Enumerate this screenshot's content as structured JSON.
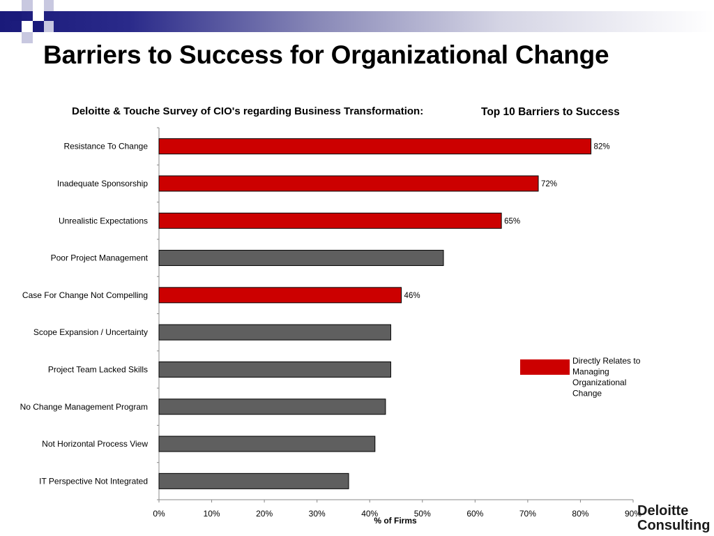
{
  "slide": {
    "title": "Barriers to Success for Organizational Change",
    "subtitle_left": "Deloitte & Touche Survey of CIO's regarding Business Transformation:",
    "subtitle_right": "Top 10 Barriers to Success"
  },
  "logo": {
    "line1": "Deloitte",
    "line2": "Consulting"
  },
  "colors": {
    "highlight": "#cc0000",
    "other": "#5f5f5f",
    "band_dark": "#1a1a7a"
  },
  "chart_data": {
    "type": "bar",
    "orientation": "horizontal",
    "categories": [
      "Resistance To Change",
      "Inadequate Sponsorship",
      "Unrealistic Expectations",
      "Poor Project Management",
      "Case For Change Not Compelling",
      "Scope Expansion / Uncertainty",
      "Project Team Lacked Skills",
      "No Change Management Program",
      "Not Horizontal Process View",
      "IT Perspective Not Integrated"
    ],
    "values": [
      82,
      72,
      65,
      54,
      46,
      44,
      44,
      43,
      41,
      36
    ],
    "highlighted": [
      true,
      true,
      true,
      false,
      true,
      false,
      false,
      false,
      false,
      false
    ],
    "data_labels": [
      "82%",
      "72%",
      "65%",
      "",
      "46%",
      "",
      "",
      "",
      "",
      ""
    ],
    "xlabel": "% of Firms",
    "xlim": [
      0,
      90
    ],
    "xticks": [
      "0%",
      "10%",
      "20%",
      "30%",
      "40%",
      "50%",
      "60%",
      "70%",
      "80%",
      "90%"
    ],
    "grid": false,
    "legend": {
      "placement": "right",
      "entries": [
        {
          "label": "Directly Relates to Managing Organizational Change"
        }
      ]
    }
  }
}
